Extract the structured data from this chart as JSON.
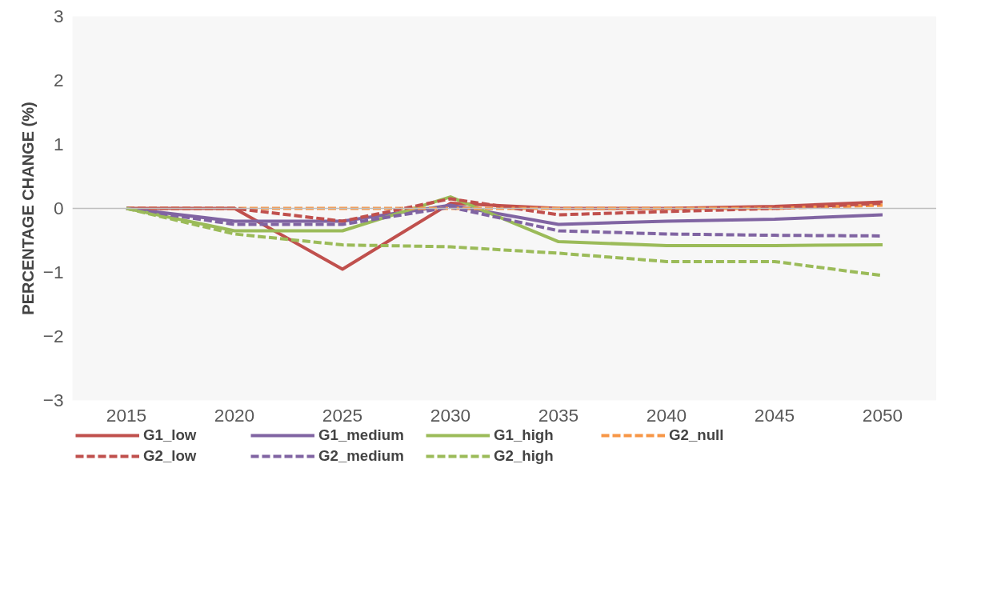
{
  "chart_data": {
    "type": "line",
    "ylabel": "PERCENTAGE CHANGE (%)",
    "categories": [
      "2015",
      "2020",
      "2025",
      "2030",
      "2035",
      "2040",
      "2045",
      "2050"
    ],
    "ylim": [
      -3,
      3
    ],
    "yticks": [
      -3,
      -2,
      -1,
      0,
      1,
      2,
      3
    ],
    "grid": false,
    "legend": "bottom",
    "ref_lines": [
      {
        "axis": "y",
        "value": 0,
        "color": "#bfbfbf"
      }
    ],
    "series": [
      {
        "name": "G1_low",
        "color": "#c0504d",
        "line_style": "solid",
        "values": [
          0,
          0,
          -0.95,
          0.08,
          0,
          0,
          0.03,
          0.1
        ]
      },
      {
        "name": "G1_medium",
        "color": "#8064a2",
        "line_style": "solid",
        "values": [
          0,
          -0.2,
          -0.2,
          0.05,
          -0.25,
          -0.2,
          -0.17,
          -0.1
        ]
      },
      {
        "name": "G1_high",
        "color": "#9bbb59",
        "line_style": "solid",
        "values": [
          0,
          -0.35,
          -0.35,
          0.18,
          -0.52,
          -0.58,
          -0.58,
          -0.57
        ]
      },
      {
        "name": "G2_null",
        "color": "#f79646",
        "line_style": "dashed",
        "values": [
          0,
          0,
          0,
          0,
          0,
          0,
          0,
          0.05
        ]
      },
      {
        "name": "G2_low",
        "color": "#c0504d",
        "line_style": "dashed",
        "values": [
          0,
          0,
          -0.2,
          0.15,
          -0.1,
          -0.05,
          0,
          0.08
        ]
      },
      {
        "name": "G2_medium",
        "color": "#8064a2",
        "line_style": "dashed",
        "values": [
          0,
          -0.25,
          -0.25,
          0.02,
          -0.35,
          -0.4,
          -0.42,
          -0.43
        ]
      },
      {
        "name": "G2_high",
        "color": "#9bbb59",
        "line_style": "dashed",
        "values": [
          0,
          -0.4,
          -0.57,
          -0.6,
          -0.7,
          -0.83,
          -0.83,
          -1.05
        ]
      }
    ]
  }
}
